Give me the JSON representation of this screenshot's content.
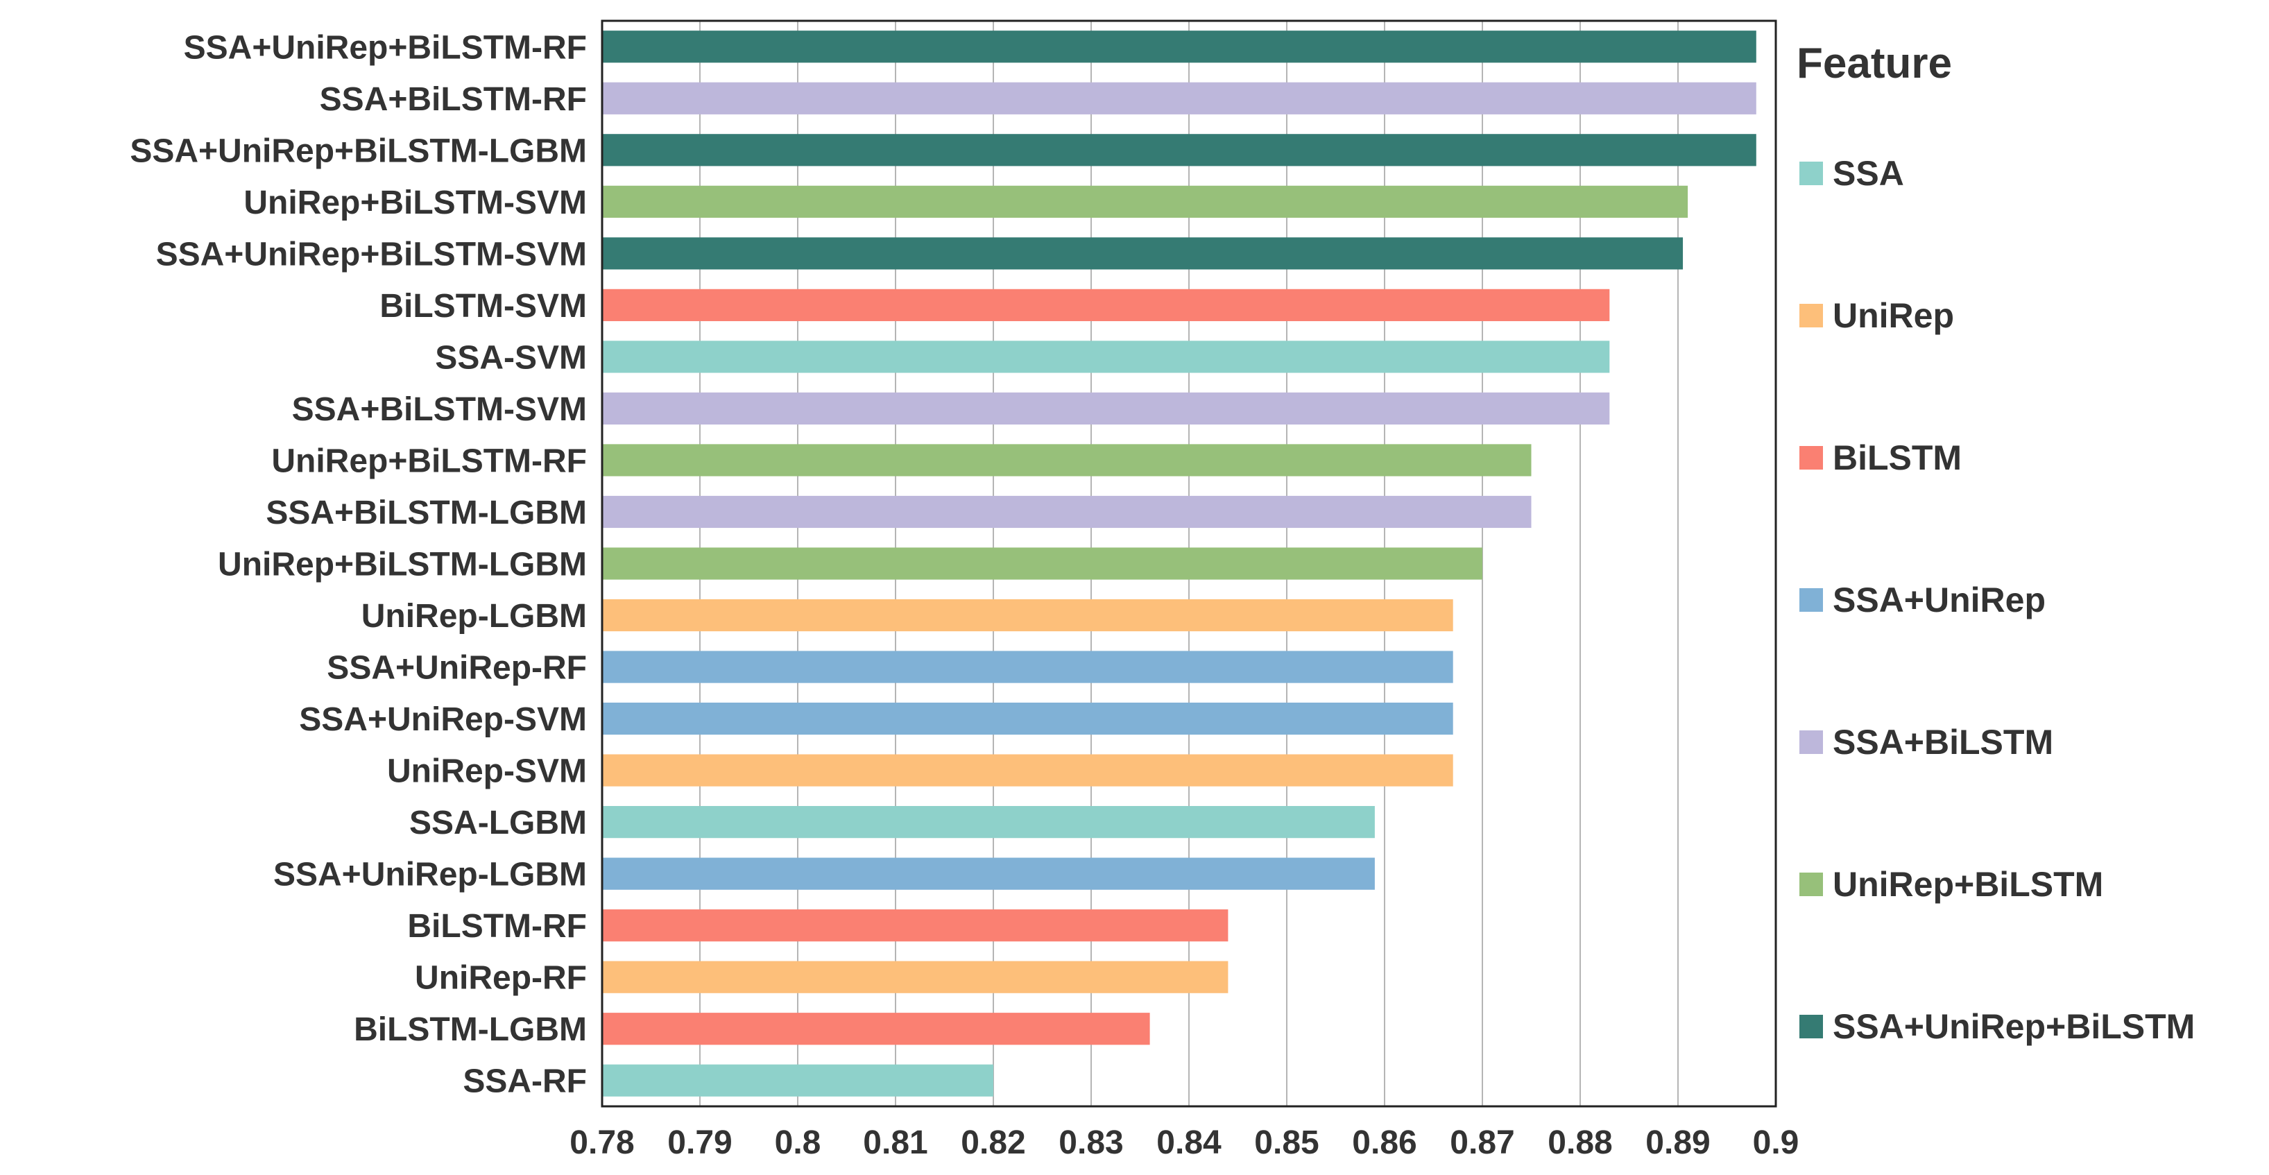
{
  "chart_data": {
    "type": "bar",
    "orientation": "horizontal",
    "title": "",
    "xlabel": "",
    "ylabel": "",
    "xlim": [
      0.78,
      0.9
    ],
    "xticks": [
      "0.78",
      "0.79",
      "0.8",
      "0.81",
      "0.82",
      "0.83",
      "0.84",
      "0.85",
      "0.86",
      "0.87",
      "0.88",
      "0.89",
      "0.9"
    ],
    "grid": "vertical",
    "legend": {
      "title": "Feature",
      "position": "right",
      "entries": [
        {
          "label": "SSA",
          "color": "#8ED1CA"
        },
        {
          "label": "UniRep",
          "color": "#FDBF7A"
        },
        {
          "label": "BiLSTM",
          "color": "#FA8072"
        },
        {
          "label": "SSA+UniRep",
          "color": "#80B1D6"
        },
        {
          "label": "SSA+BiLSTM",
          "color": "#BDB7DB"
        },
        {
          "label": "UniRep+BiLSTM",
          "color": "#97C07A"
        },
        {
          "label": "SSA+UniRep+BiLSTM",
          "color": "#357B73"
        }
      ]
    },
    "bars": [
      {
        "label": "SSA+UniRep+BiLSTM-RF",
        "value": 0.898,
        "feature": "SSA+UniRep+BiLSTM"
      },
      {
        "label": "SSA+BiLSTM-RF",
        "value": 0.898,
        "feature": "SSA+BiLSTM"
      },
      {
        "label": "SSA+UniRep+BiLSTM-LGBM",
        "value": 0.898,
        "feature": "SSA+UniRep+BiLSTM"
      },
      {
        "label": "UniRep+BiLSTM-SVM",
        "value": 0.891,
        "feature": "UniRep+BiLSTM"
      },
      {
        "label": "SSA+UniRep+BiLSTM-SVM",
        "value": 0.8905,
        "feature": "SSA+UniRep+BiLSTM"
      },
      {
        "label": "BiLSTM-SVM",
        "value": 0.883,
        "feature": "BiLSTM"
      },
      {
        "label": "SSA-SVM",
        "value": 0.883,
        "feature": "SSA"
      },
      {
        "label": "SSA+BiLSTM-SVM",
        "value": 0.883,
        "feature": "SSA+BiLSTM"
      },
      {
        "label": "UniRep+BiLSTM-RF",
        "value": 0.875,
        "feature": "UniRep+BiLSTM"
      },
      {
        "label": "SSA+BiLSTM-LGBM",
        "value": 0.875,
        "feature": "SSA+BiLSTM"
      },
      {
        "label": "UniRep+BiLSTM-LGBM",
        "value": 0.87,
        "feature": "UniRep+BiLSTM"
      },
      {
        "label": "UniRep-LGBM",
        "value": 0.867,
        "feature": "UniRep"
      },
      {
        "label": "SSA+UniRep-RF",
        "value": 0.867,
        "feature": "SSA+UniRep"
      },
      {
        "label": "SSA+UniRep-SVM",
        "value": 0.867,
        "feature": "SSA+UniRep"
      },
      {
        "label": "UniRep-SVM",
        "value": 0.867,
        "feature": "UniRep"
      },
      {
        "label": "SSA-LGBM",
        "value": 0.859,
        "feature": "SSA"
      },
      {
        "label": "SSA+UniRep-LGBM",
        "value": 0.859,
        "feature": "SSA+UniRep"
      },
      {
        "label": "BiLSTM-RF",
        "value": 0.844,
        "feature": "BiLSTM"
      },
      {
        "label": "UniRep-RF",
        "value": 0.844,
        "feature": "UniRep"
      },
      {
        "label": "BiLSTM-LGBM",
        "value": 0.836,
        "feature": "BiLSTM"
      },
      {
        "label": "SSA-RF",
        "value": 0.82,
        "feature": "SSA"
      }
    ]
  }
}
